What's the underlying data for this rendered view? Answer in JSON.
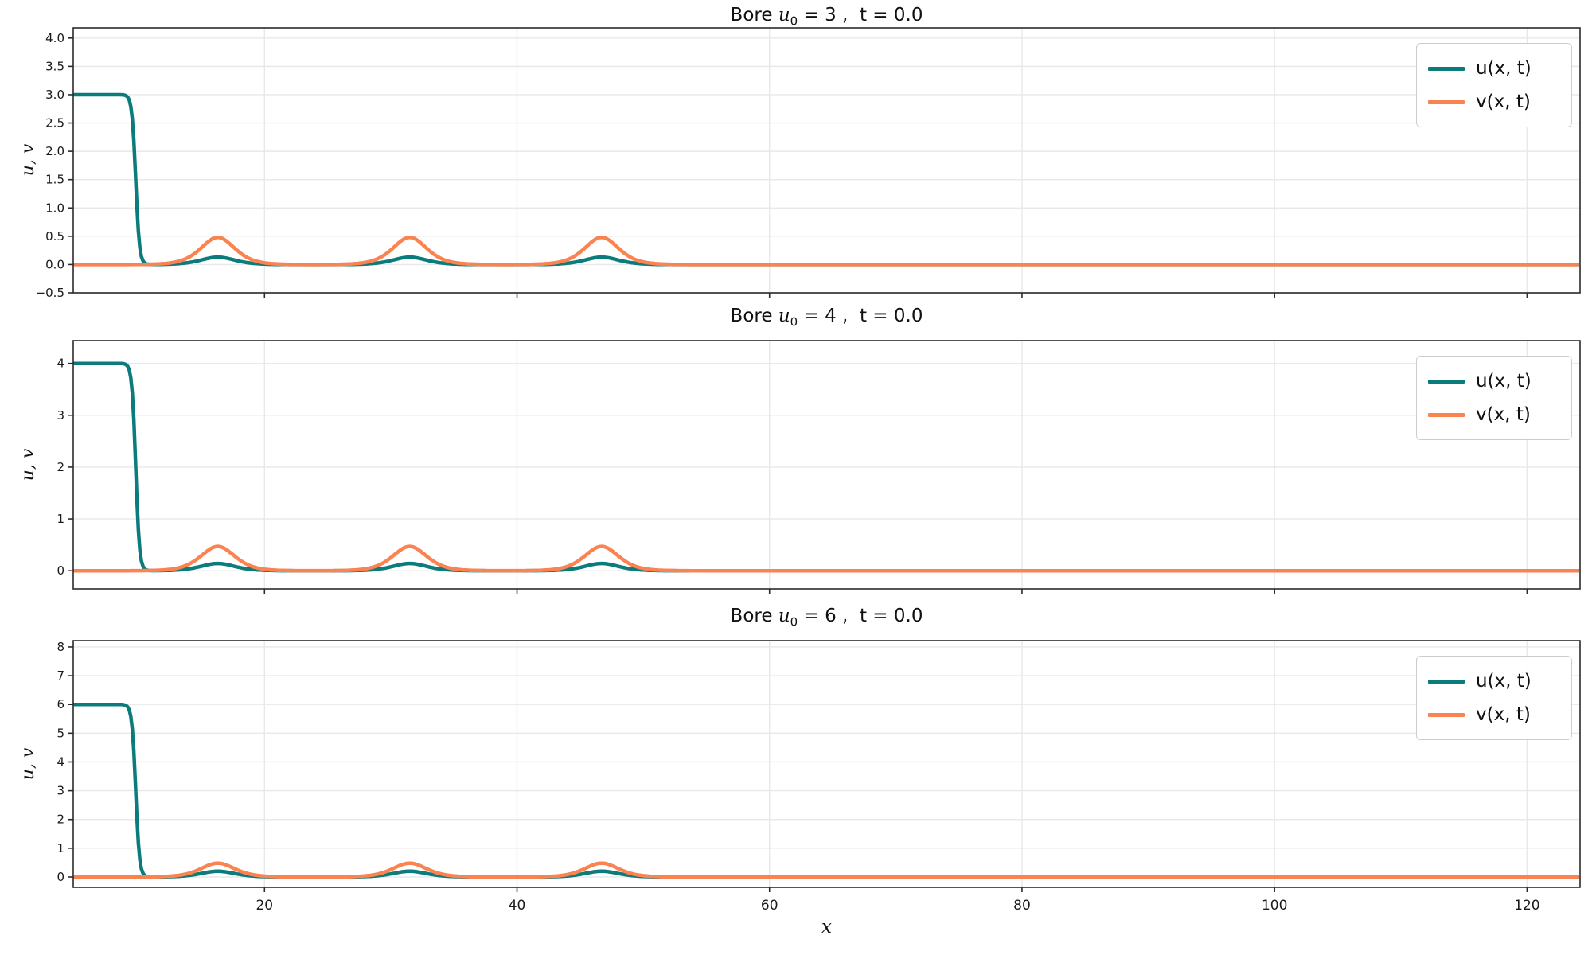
{
  "figure": {
    "background": "#ffffff"
  },
  "legend": {
    "items": [
      {
        "label": "u(x, t)",
        "series": "u"
      },
      {
        "label": "v(x, t)",
        "series": "v"
      }
    ]
  },
  "chart_data": {
    "type": "line",
    "xlabel": "x",
    "ylabel": "u, v",
    "grid": true,
    "legend_position": "upper right",
    "series_colors": {
      "u": "#0c7b7b",
      "v": "#fa8352"
    },
    "x": {
      "lim": [
        4.85,
        124.2
      ],
      "ticks": [
        20,
        40,
        60,
        80,
        100,
        120
      ],
      "tick_labels": [
        "20",
        "40",
        "60",
        "80",
        "100",
        "120"
      ]
    },
    "panels": [
      {
        "title": {
          "pre": "Bore ",
          "var": "u",
          "sub": "0",
          "post": " = 3 ,  t = 0.0"
        },
        "u0": 3,
        "t": 0.0,
        "bore_front_x": 9.8,
        "bore_front_width": 0.3,
        "pulses": {
          "positions": [
            16.3,
            31.5,
            46.7
          ],
          "width": 1.8,
          "v_amplitude": 0.48,
          "u_amplitude": 0.13
        },
        "ylim": [
          -0.5,
          4.18
        ],
        "yticks": [
          4.0,
          3.5,
          3.0,
          2.5,
          2.0,
          1.5,
          1.0,
          0.5,
          0.0,
          -0.5
        ],
        "ytick_labels": [
          "4.0",
          "3.5",
          "3.0",
          "2.5",
          "2.0",
          "1.5",
          "1.0",
          "0.5",
          "0.0",
          "−0.5"
        ]
      },
      {
        "title": {
          "pre": "Bore ",
          "var": "u",
          "sub": "0",
          "post": " = 4 ,  t = 0.0"
        },
        "u0": 4,
        "t": 0.0,
        "bore_front_x": 9.8,
        "bore_front_width": 0.3,
        "pulses": {
          "positions": [
            16.3,
            31.5,
            46.7
          ],
          "width": 1.8,
          "v_amplitude": 0.47,
          "u_amplitude": 0.14
        },
        "ylim": [
          -0.35,
          4.44
        ],
        "yticks": [
          4,
          3,
          2,
          1,
          0
        ],
        "ytick_labels": [
          "4",
          "3",
          "2",
          "1",
          "0"
        ]
      },
      {
        "title": {
          "pre": "Bore ",
          "var": "u",
          "sub": "0",
          "post": " = 6 ,  t = 0.0"
        },
        "u0": 6,
        "t": 0.0,
        "bore_front_x": 9.8,
        "bore_front_width": 0.3,
        "pulses": {
          "positions": [
            16.3,
            31.5,
            46.7
          ],
          "width": 1.8,
          "v_amplitude": 0.48,
          "u_amplitude": 0.2
        },
        "ylim": [
          -0.36,
          8.22
        ],
        "yticks": [
          8,
          7,
          6,
          5,
          4,
          3,
          2,
          1,
          0
        ],
        "ytick_labels": [
          "8",
          "7",
          "6",
          "5",
          "4",
          "3",
          "2",
          "1",
          "0"
        ]
      }
    ]
  }
}
